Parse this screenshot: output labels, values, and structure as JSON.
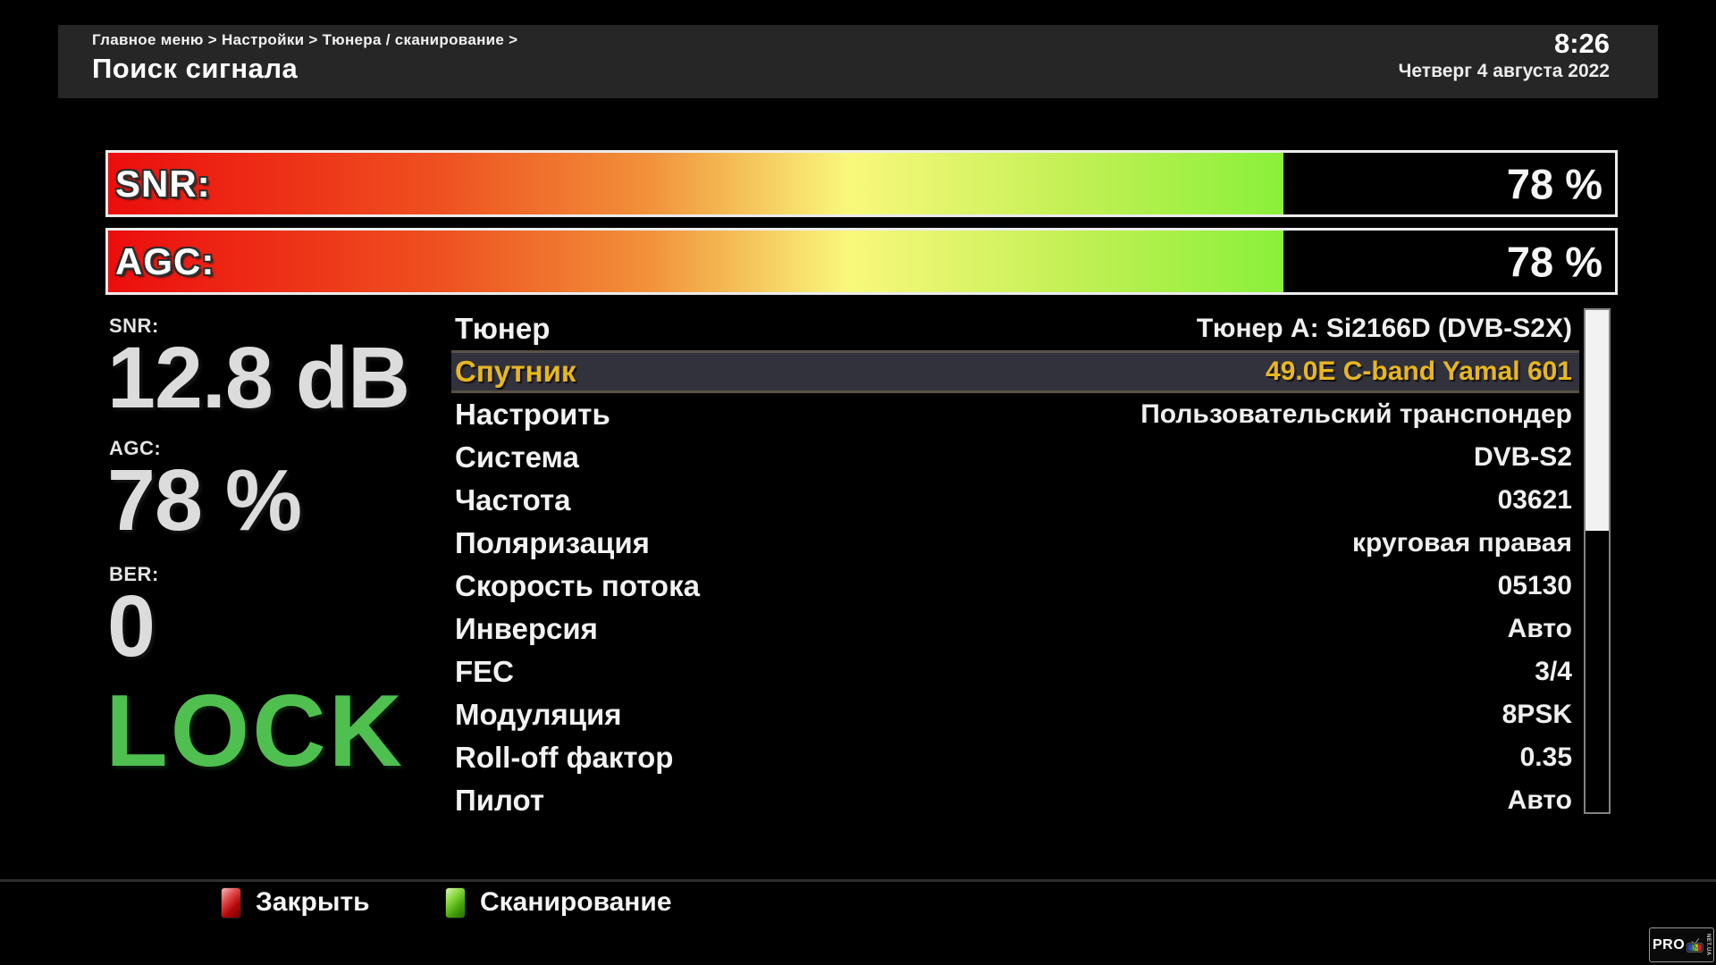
{
  "header": {
    "breadcrumb": "Главное меню > Настройки > Тюнера / сканирование >",
    "title": "Поиск сигнала",
    "clock": {
      "time": "8:26",
      "date": "Четверг  4 августа 2022"
    }
  },
  "signal_bars": [
    {
      "label": "SNR:",
      "value": "78 %",
      "percent": 78
    },
    {
      "label": "AGC:",
      "value": "78 %",
      "percent": 78
    }
  ],
  "readouts": {
    "snr": {
      "label": "SNR:",
      "value": "12.8 dB"
    },
    "agc": {
      "label": "AGC:",
      "value": "78 %"
    },
    "ber": {
      "label": "BER:",
      "value": "0"
    },
    "lock": "LOCK"
  },
  "settings": {
    "selected_index": 1,
    "rows": [
      {
        "label": "Тюнер",
        "value": "Тюнер A: Si2166D (DVB-S2X)"
      },
      {
        "label": "Спутник",
        "value": "49.0E C-band Yamal 601"
      },
      {
        "label": "Настроить",
        "value": "Пользовательский транспондер"
      },
      {
        "label": "Система",
        "value": "DVB-S2"
      },
      {
        "label": "Частота",
        "value": "03621"
      },
      {
        "label": "Поляризация",
        "value": "круговая правая"
      },
      {
        "label": "Скорость потока",
        "value": "05130"
      },
      {
        "label": "Инверсия",
        "value": "Авто"
      },
      {
        "label": "FEC",
        "value": "3/4"
      },
      {
        "label": "Модуляция",
        "value": "8PSK"
      },
      {
        "label": "Roll-off фактор",
        "value": "0.35"
      },
      {
        "label": "Пилот",
        "value": "Авто"
      }
    ],
    "scrollbar": {
      "thumb_percent": 44
    }
  },
  "footer": {
    "close": {
      "label": "Закрыть"
    },
    "scan": {
      "label": "Сканирование"
    }
  },
  "watermark": {
    "pro": "PRO",
    "tv": "TV",
    "net": "NET.UA"
  },
  "colors": {
    "lock_green": "#4fc04f",
    "highlight_text": "#e7b71e",
    "highlight_bg": "#32323d",
    "header_bg": "#262626",
    "bar_gradient": [
      "#ec0d0d",
      "#ee5020",
      "#f2913a",
      "#f9f87c",
      "#8af03a"
    ],
    "key_red": "#b30808",
    "key_green": "#47a50c"
  }
}
